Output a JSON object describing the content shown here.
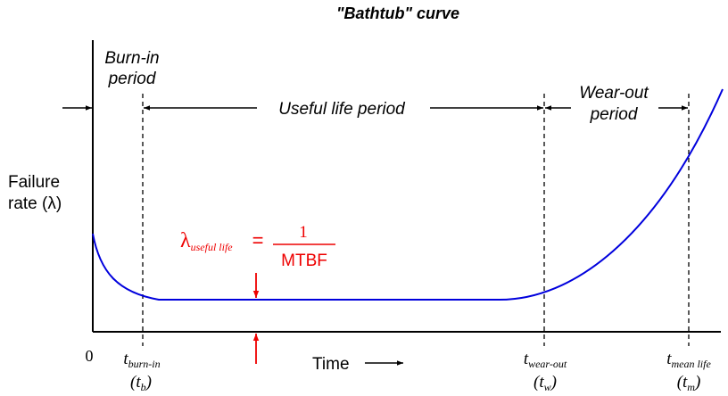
{
  "title": "\"Bathtub\" curve",
  "ylabel": {
    "line1": "Failure",
    "line2": "rate (λ)"
  },
  "xlabel": "Time",
  "origin_label": "0",
  "periods": {
    "burn_in": {
      "line1": "Burn-in",
      "line2": "period"
    },
    "useful_life": "Useful life period",
    "wear_out": {
      "line1": "Wear-out",
      "line2": "period"
    }
  },
  "markers": [
    {
      "main": "t",
      "sub": "burn-in",
      "paren_main": "(t",
      "paren_sub": "b",
      "paren_close": ")"
    },
    {
      "main": "t",
      "sub": "wear-out",
      "paren_main": "(t",
      "paren_sub": "w",
      "paren_close": ")"
    },
    {
      "main": "t",
      "sub": "mean life",
      "paren_main": "(t",
      "paren_sub": "m",
      "paren_close": ")"
    }
  ],
  "formula": {
    "lambda": "λ",
    "subscript": "useful life",
    "equals": "=",
    "numerator": "1",
    "denominator": "MTBF"
  },
  "colors": {
    "curve": "#0000dd",
    "annotation": "#ee0000",
    "axis": "#000000"
  }
}
